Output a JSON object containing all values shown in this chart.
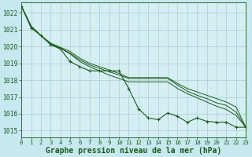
{
  "background_color": "#c6e8ee",
  "plot_bg_color": "#d5eef2",
  "grid_color": "#a8cdd4",
  "line_color": "#1a5c1a",
  "title": "Graphe pression niveau de la mer (hPa)",
  "xlim": [
    0,
    23
  ],
  "ylim": [
    1014.6,
    1022.6
  ],
  "yticks": [
    1015,
    1016,
    1017,
    1018,
    1019,
    1020,
    1021,
    1022
  ],
  "xticks": [
    0,
    1,
    2,
    3,
    4,
    5,
    6,
    7,
    8,
    9,
    10,
    11,
    12,
    13,
    14,
    15,
    16,
    17,
    18,
    19,
    20,
    21,
    22,
    23
  ],
  "series": [
    {
      "x": [
        0,
        1,
        2,
        3,
        4,
        5,
        6,
        7,
        8,
        9,
        10,
        11,
        12,
        13,
        14,
        15,
        16,
        17,
        18,
        19,
        20,
        21,
        22,
        23
      ],
      "y": [
        1022.4,
        1021.2,
        1020.65,
        1020.2,
        1019.95,
        1019.7,
        1019.3,
        1019.0,
        1018.8,
        1018.6,
        1018.4,
        1018.15,
        1018.15,
        1018.15,
        1018.15,
        1018.15,
        1017.8,
        1017.5,
        1017.3,
        1017.1,
        1016.9,
        1016.7,
        1016.4,
        1015.2
      ],
      "with_markers": false
    },
    {
      "x": [
        0,
        1,
        2,
        3,
        4,
        5,
        6,
        7,
        8,
        9,
        10,
        11,
        12,
        13,
        14,
        15,
        16,
        17,
        18,
        19,
        20,
        21,
        22,
        23
      ],
      "y": [
        1022.4,
        1021.2,
        1020.65,
        1020.15,
        1019.9,
        1019.6,
        1019.2,
        1018.9,
        1018.7,
        1018.5,
        1018.3,
        1018.1,
        1018.1,
        1018.1,
        1018.1,
        1018.1,
        1017.7,
        1017.35,
        1017.1,
        1016.9,
        1016.65,
        1016.5,
        1016.1,
        1015.2
      ],
      "with_markers": false
    },
    {
      "x": [
        0,
        1,
        2,
        3,
        4,
        5,
        6,
        7,
        8,
        9,
        10,
        11,
        12,
        13,
        14,
        15,
        16,
        17,
        18,
        19,
        20,
        21,
        22,
        23
      ],
      "y": [
        1022.4,
        1021.2,
        1020.65,
        1020.15,
        1019.9,
        1019.55,
        1019.1,
        1018.8,
        1018.55,
        1018.3,
        1018.1,
        1017.9,
        1017.9,
        1017.9,
        1017.9,
        1017.9,
        1017.5,
        1017.2,
        1016.95,
        1016.7,
        1016.45,
        1016.25,
        1015.9,
        1015.2
      ],
      "with_markers": false
    },
    {
      "x": [
        0,
        1,
        2,
        3,
        4,
        5,
        6,
        7,
        8,
        9,
        10,
        11,
        12,
        13,
        14,
        15,
        16,
        17,
        18,
        19,
        20,
        21,
        22,
        23
      ],
      "y": [
        1022.4,
        1021.1,
        1020.65,
        1020.1,
        1019.85,
        1019.1,
        1018.8,
        1018.55,
        1018.55,
        1018.55,
        1018.55,
        1017.5,
        1016.3,
        1015.75,
        1015.65,
        1016.05,
        1015.85,
        1015.5,
        1015.75,
        1015.55,
        1015.5,
        1015.5,
        1015.2,
        1015.2
      ],
      "with_markers": true
    }
  ],
  "title_fontsize": 7.0,
  "tick_fontsize": 5.8
}
